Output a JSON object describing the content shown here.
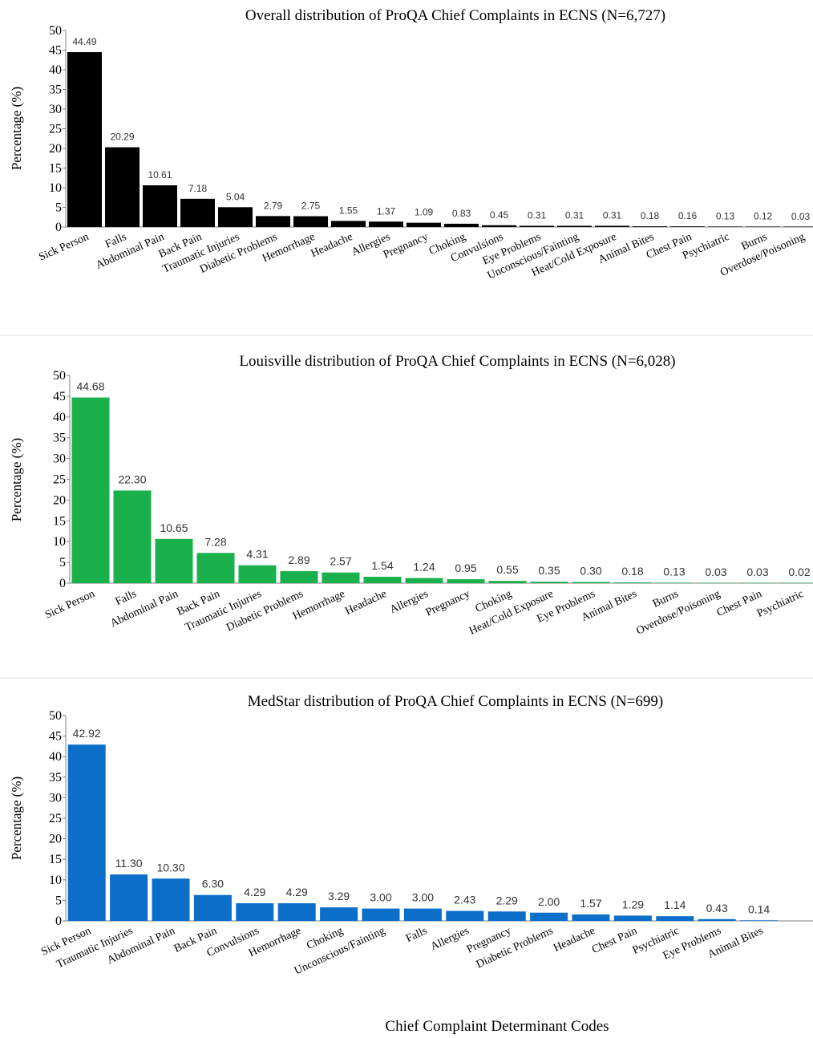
{
  "xlabel": "Chief Complaint Determinant Codes",
  "chart_data": [
    {
      "type": "bar",
      "title": "Overall distribution of ProQA Chief Complaints in ECNS (N=6,727)",
      "ylabel": "Percentage (%)",
      "ylim": [
        0,
        50
      ],
      "yticks": [
        0,
        5,
        10,
        15,
        20,
        25,
        30,
        35,
        40,
        45,
        50
      ],
      "color": "#000000",
      "categories": [
        "Sick Person",
        "Falls",
        "Abdominal Pain",
        "Back Pain",
        "Traumatic Injuries",
        "Diabetic Problems",
        "Hemorrhage",
        "Headache",
        "Allergies",
        "Pregnancy",
        "Choking",
        "Convulsions",
        "Eye Problems",
        "Unconscious/Fainting",
        "Heat/Cold Exposure",
        "Animal Bites",
        "Chest Pain",
        "Psychiatric",
        "Burns",
        "Overdose/Poisoning"
      ],
      "values": [
        44.49,
        20.29,
        10.61,
        7.18,
        5.04,
        2.79,
        2.75,
        1.55,
        1.37,
        1.09,
        0.83,
        0.45,
        0.31,
        0.31,
        0.31,
        0.18,
        0.16,
        0.13,
        0.12,
        0.03
      ],
      "labels": [
        "44.49",
        "20.29",
        "10.61",
        "7.18",
        "5.04",
        "2.79",
        "2.75",
        "1.55",
        "1.37",
        "1.09",
        "0.83",
        "0.45",
        "0.31",
        "0.31",
        "0.31",
        "0.18",
        "0.16",
        "0.13",
        "0.12",
        "0.03"
      ],
      "grid": false,
      "legend": "none"
    },
    {
      "type": "bar",
      "title": "Louisville distribution of ProQA Chief Complaints in ECNS (N=6,028)",
      "ylabel": "Percentage (%)",
      "ylim": [
        0,
        50
      ],
      "yticks": [
        0,
        5,
        10,
        15,
        20,
        25,
        30,
        35,
        40,
        45,
        50
      ],
      "color": "#1ab04c",
      "categories": [
        "Sick Person",
        "Falls",
        "Abdominal Pain",
        "Back Pain",
        "Traumatic Injuries",
        "Diabetic Problems",
        "Hemorrhage",
        "Headache",
        "Allergies",
        "Pregnancy",
        "Choking",
        "Heat/Cold Exposure",
        "Eye Problems",
        "Animal Bites",
        "Burns",
        "Overdose/Poisoning",
        "Chest Pain",
        "Psychiatric"
      ],
      "values": [
        44.68,
        22.3,
        10.65,
        7.28,
        4.31,
        2.89,
        2.57,
        1.54,
        1.24,
        0.95,
        0.55,
        0.35,
        0.3,
        0.18,
        0.13,
        0.03,
        0.03,
        0.02
      ],
      "labels": [
        "44.68",
        "22.30",
        "10.65",
        "7.28",
        "4.31",
        "2.89",
        "2.57",
        "1.54",
        "1.24",
        "0.95",
        "0.55",
        "0.35",
        "0.30",
        "0.18",
        "0.13",
        "0.03",
        "0.03",
        "0.02"
      ],
      "grid": false,
      "legend": "none"
    },
    {
      "type": "bar",
      "title": "MedStar distribution of ProQA Chief Complaints in ECNS (N=699)",
      "ylabel": "Percentage (%)",
      "ylim": [
        0,
        50
      ],
      "yticks": [
        0,
        5,
        10,
        15,
        20,
        25,
        30,
        35,
        40,
        45,
        50
      ],
      "color": "#0b6ec9",
      "categories": [
        "Sick Person",
        "Traumatic Injuries",
        "Abdominal Pain",
        "Back Pain",
        "Convulsions",
        "Hemorrhage",
        "Choking",
        "Unconscious/Fainting",
        "Falls",
        "Allergies",
        "Pregnancy",
        "Diabetic Problems",
        "Headache",
        "Chest Pain",
        "Psychiatric",
        "Eye Problems",
        "Animal Bites"
      ],
      "values": [
        42.92,
        11.3,
        10.3,
        6.3,
        4.29,
        4.29,
        3.29,
        3.0,
        3.0,
        2.43,
        2.29,
        2.0,
        1.57,
        1.29,
        1.14,
        0.43,
        0.14
      ],
      "labels": [
        "42.92",
        "11.30",
        "10.30",
        "6.30",
        "4.29",
        "4.29",
        "3.29",
        "3.00",
        "3.00",
        "2.43",
        "2.29",
        "2.00",
        "1.57",
        "1.29",
        "1.14",
        "0.43",
        "0.14"
      ],
      "grid": false,
      "legend": "none"
    }
  ]
}
